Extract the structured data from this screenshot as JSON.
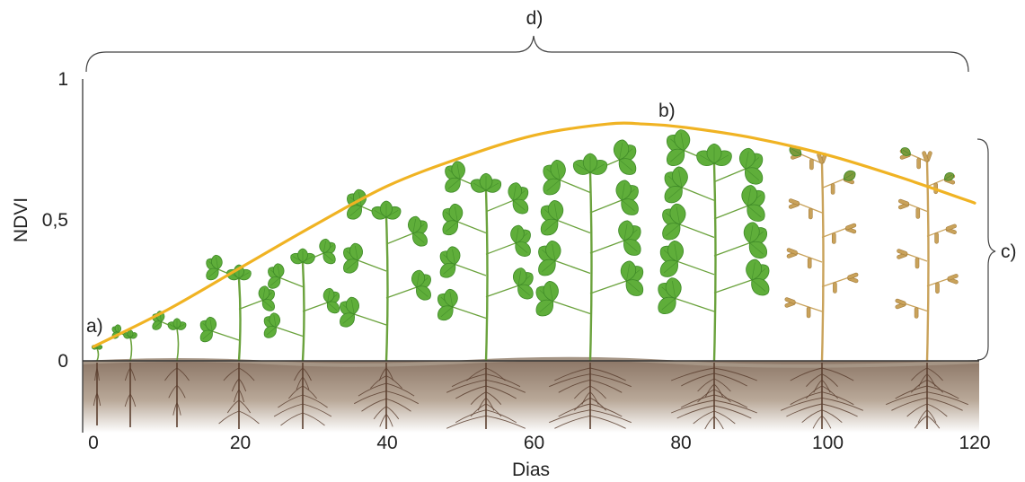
{
  "chart_data": {
    "type": "line",
    "title": "",
    "xlabel": "Dias",
    "ylabel": "NDVI",
    "xlim": [
      0,
      120
    ],
    "ylim": [
      0,
      1
    ],
    "x_ticks": [
      "0",
      "20",
      "40",
      "60",
      "80",
      "100",
      "120"
    ],
    "y_ticks": [
      "0",
      "0,5",
      "1"
    ],
    "grid": false,
    "series": [
      {
        "x": [
          0,
          10,
          20,
          30,
          40,
          50,
          60,
          70,
          75,
          80,
          90,
          100,
          110,
          120
        ],
        "values": [
          0.05,
          0.18,
          0.33,
          0.48,
          0.62,
          0.72,
          0.8,
          0.84,
          0.84,
          0.83,
          0.79,
          0.73,
          0.65,
          0.56
        ],
        "color": "#f0b323"
      }
    ],
    "annotations": {
      "a": "a)",
      "b": "b)",
      "c": "c)",
      "d": "d)"
    },
    "colors": {
      "curve": "#f0b323",
      "soil": "#8a7565",
      "leaf": "#5fae3a",
      "leaf_dark": "#3f8a28",
      "stem": "#6aa23c",
      "dry": "#c9a25a",
      "root": "#5c4030"
    }
  }
}
